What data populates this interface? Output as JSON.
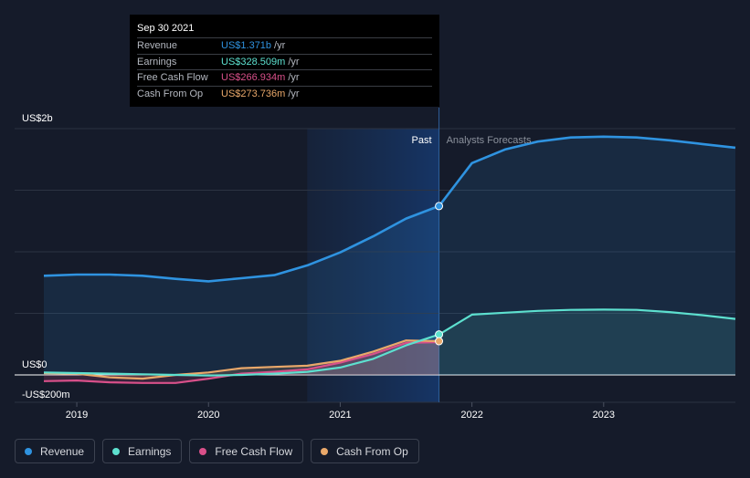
{
  "tooltip": {
    "date": "Sep 30 2021",
    "rows": [
      {
        "label": "Revenue",
        "value": "US$1.371b",
        "unit": "/yr",
        "color": "#2f93e0"
      },
      {
        "label": "Earnings",
        "value": "US$328.509m",
        "unit": "/yr",
        "color": "#5de0cf"
      },
      {
        "label": "Free Cash Flow",
        "value": "US$266.934m",
        "unit": "/yr",
        "color": "#d9508a"
      },
      {
        "label": "Cash From Op",
        "value": "US$273.736m",
        "unit": "/yr",
        "color": "#e9a86a"
      }
    ]
  },
  "chart_data": {
    "type": "line",
    "title": "",
    "xlabel": "",
    "ylabel": "",
    "ylim": [
      -200,
      2000
    ],
    "xlim": [
      2018.6,
      2024.0
    ],
    "y_tick_labels": [
      {
        "value": 2000,
        "label": "US$2b"
      },
      {
        "value": 0,
        "label": "US$0"
      },
      {
        "value": -200,
        "label": "-US$200m"
      }
    ],
    "x_ticks": [
      2019,
      2020,
      2021,
      2022,
      2023
    ],
    "x_tick_labels": [
      "2019",
      "2020",
      "2021",
      "2022",
      "2023"
    ],
    "past_label": "Past",
    "forecast_label": "Analysts Forecasts",
    "past_end": 2021.75,
    "highlight_start": 2020.75,
    "series": [
      {
        "name": "Revenue",
        "color": "#2f93e0",
        "points": [
          [
            2018.75,
            805
          ],
          [
            2019.0,
            815
          ],
          [
            2019.25,
            815
          ],
          [
            2019.5,
            805
          ],
          [
            2019.75,
            780
          ],
          [
            2020.0,
            760
          ],
          [
            2020.25,
            785
          ],
          [
            2020.5,
            810
          ],
          [
            2020.75,
            890
          ],
          [
            2021.0,
            995
          ],
          [
            2021.25,
            1125
          ],
          [
            2021.5,
            1270
          ],
          [
            2021.75,
            1371
          ],
          [
            2022.0,
            1720
          ],
          [
            2022.25,
            1830
          ],
          [
            2022.5,
            1895
          ],
          [
            2022.75,
            1928
          ],
          [
            2023.0,
            1935
          ],
          [
            2023.25,
            1928
          ],
          [
            2023.5,
            1905
          ],
          [
            2023.75,
            1875
          ],
          [
            2024.0,
            1845
          ]
        ]
      },
      {
        "name": "Earnings",
        "color": "#5de0cf",
        "points": [
          [
            2018.75,
            20
          ],
          [
            2019.0,
            15
          ],
          [
            2019.25,
            10
          ],
          [
            2019.5,
            5
          ],
          [
            2019.75,
            0
          ],
          [
            2020.0,
            -5
          ],
          [
            2020.25,
            0
          ],
          [
            2020.5,
            10
          ],
          [
            2020.75,
            25
          ],
          [
            2021.0,
            60
          ],
          [
            2021.25,
            130
          ],
          [
            2021.5,
            240
          ],
          [
            2021.75,
            328.509
          ],
          [
            2022.0,
            490
          ],
          [
            2022.25,
            505
          ],
          [
            2022.5,
            520
          ],
          [
            2022.75,
            528
          ],
          [
            2023.0,
            530
          ],
          [
            2023.25,
            528
          ],
          [
            2023.5,
            510
          ],
          [
            2023.75,
            485
          ],
          [
            2024.0,
            455
          ]
        ]
      },
      {
        "name": "Free Cash Flow",
        "color": "#d9508a",
        "points": [
          [
            2018.75,
            -50
          ],
          [
            2019.0,
            -45
          ],
          [
            2019.25,
            -60
          ],
          [
            2019.5,
            -65
          ],
          [
            2019.75,
            -65
          ],
          [
            2020.0,
            -30
          ],
          [
            2020.25,
            10
          ],
          [
            2020.5,
            25
          ],
          [
            2020.75,
            45
          ],
          [
            2021.0,
            100
          ],
          [
            2021.25,
            170
          ],
          [
            2021.5,
            260
          ],
          [
            2021.75,
            266.934
          ]
        ]
      },
      {
        "name": "Cash From Op",
        "color": "#e9a86a",
        "points": [
          [
            2018.75,
            15
          ],
          [
            2019.0,
            10
          ],
          [
            2019.25,
            -20
          ],
          [
            2019.5,
            -30
          ],
          [
            2019.75,
            0
          ],
          [
            2020.0,
            20
          ],
          [
            2020.25,
            55
          ],
          [
            2020.5,
            65
          ],
          [
            2020.75,
            75
          ],
          [
            2021.0,
            115
          ],
          [
            2021.25,
            190
          ],
          [
            2021.5,
            280
          ],
          [
            2021.75,
            273.736
          ]
        ]
      }
    ]
  },
  "legend": [
    {
      "label": "Revenue",
      "color": "#2f93e0"
    },
    {
      "label": "Earnings",
      "color": "#5de0cf"
    },
    {
      "label": "Free Cash Flow",
      "color": "#d9508a"
    },
    {
      "label": "Cash From Op",
      "color": "#e9a86a"
    }
  ]
}
